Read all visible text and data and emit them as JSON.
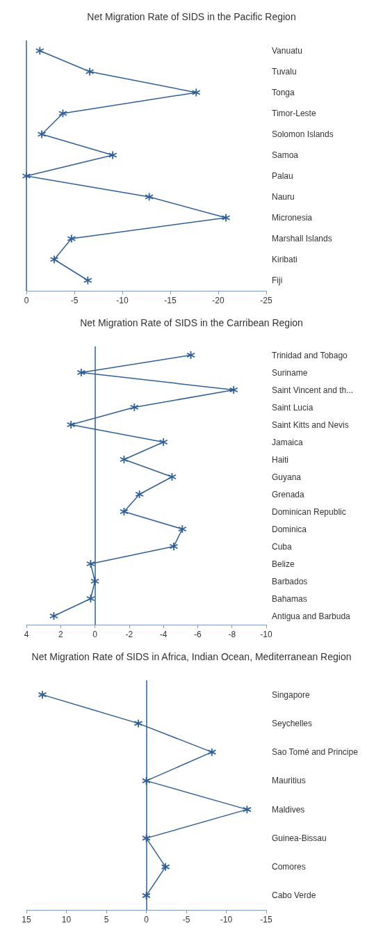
{
  "chart_data": [
    {
      "type": "line",
      "orientation": "horizontal",
      "title": "Net Migration Rate of SIDS in the Pacific Region",
      "categories": [
        "Vanuatu",
        "Tuvalu",
        "Tonga",
        "Timor-Leste",
        "Solomon Islands",
        "Samoa",
        "Palau",
        "Nauru",
        "Micronesia",
        "Marshall Islands",
        "Kiribati",
        "Fiji"
      ],
      "series": [
        {
          "color": "#2e5f96",
          "values": [
            -1.4,
            -6.6,
            -17.7,
            -3.8,
            -1.6,
            -9.0,
            0,
            -12.8,
            -20.8,
            -4.7,
            -2.9,
            -6.4
          ]
        }
      ],
      "xlim": [
        0,
        -25
      ],
      "xticks": [
        0,
        -5,
        -10,
        -15,
        -20,
        -25
      ],
      "ref_lines": [
        {
          "axis": "x",
          "value": 0,
          "label": null
        }
      ],
      "marker": "cross",
      "grid": false
    },
    {
      "type": "line",
      "orientation": "horizontal",
      "title": "Net Migration Rate of SIDS in the Carribean Region",
      "categories": [
        "Trinidad and Tobago",
        "Suriname",
        "Saint Vincent and th...",
        "Saint Lucia",
        "Saint Kitts and Nevis",
        "Jamaica",
        "Haiti",
        "Guyana",
        "Grenada",
        "Dominican Republic",
        "Dominica",
        "Cuba",
        "Belize",
        "Barbados",
        "Bahamas",
        "Antigua and Barbuda"
      ],
      "series": [
        {
          "color": "#2e5f96",
          "values": [
            -5.6,
            0.8,
            -8.1,
            -2.3,
            1.4,
            -4.0,
            -1.7,
            -4.5,
            -2.6,
            -1.7,
            -5.1,
            -4.6,
            0.25,
            0,
            0.25,
            2.4
          ]
        }
      ],
      "xlim": [
        4,
        -10
      ],
      "xticks": [
        4,
        2,
        0,
        -2,
        -4,
        -6,
        -8,
        -10
      ],
      "ref_lines": [
        {
          "axis": "x",
          "value": 0,
          "label": null
        }
      ],
      "marker": "cross",
      "grid": false
    },
    {
      "type": "line",
      "orientation": "horizontal",
      "title": "Net Migration Rate of SIDS in Africa, Indian Ocean, Mediterranean Region",
      "categories": [
        "Singapore",
        "Seychelles",
        "Sao Tomé and Principe",
        "Mauritius",
        "Maldives",
        "Guinea-Bissau",
        "Comores",
        "Cabo Verde"
      ],
      "series": [
        {
          "color": "#2e5f96",
          "values": [
            13.0,
            1.0,
            -8.2,
            0,
            -12.6,
            0,
            -2.4,
            0
          ]
        }
      ],
      "xlim": [
        15,
        -15
      ],
      "xticks": [
        15,
        10,
        5,
        0,
        -5,
        -10,
        -15
      ],
      "ref_lines": [
        {
          "axis": "x",
          "value": 0,
          "label": null
        }
      ],
      "marker": "cross",
      "grid": false
    }
  ]
}
